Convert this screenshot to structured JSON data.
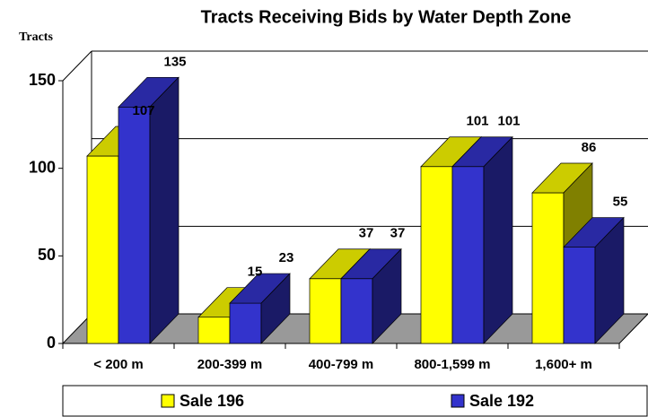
{
  "chart_data": {
    "type": "bar3d",
    "title": "Tracts Receiving Bids by Water Depth Zone",
    "y_label": "Tracts",
    "categories": [
      "< 200 m",
      "200-399 m",
      "400-799 m",
      "800-1,599 m",
      "1,600+ m"
    ],
    "series": [
      {
        "name": "Sale 196",
        "color": "#ffff00",
        "values": [
          107,
          15,
          37,
          101,
          86
        ]
      },
      {
        "name": "Sale 192",
        "color": "#3333cc",
        "values": [
          135,
          23,
          37,
          101,
          55
        ]
      }
    ],
    "ylim": [
      0,
      150
    ],
    "yticks": [
      0,
      50,
      100,
      150
    ],
    "grid": true,
    "legend": "bottom"
  }
}
